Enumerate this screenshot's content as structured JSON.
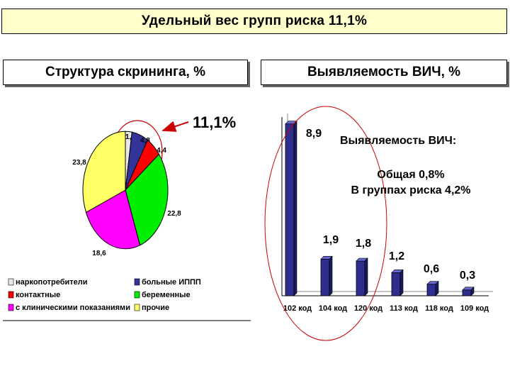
{
  "header": {
    "title": "Удельный вес групп риска  11,1%"
  },
  "panels": {
    "left_title": "Структура скрининга, %",
    "right_title": "Выявляемость ВИЧ, %"
  },
  "callout": {
    "text": "11,1%"
  },
  "info": {
    "heading": "Выявляемость ВИЧ:",
    "line1": "Общая 0,8%",
    "line2": "В группах риска 4,2%"
  },
  "chart_data": [
    {
      "type": "pie",
      "title": "Структура скрининга, %",
      "slices": [
        {
          "label": "наркопотребители",
          "value": 1.9,
          "value_label": "1,9",
          "color": "#e8e8e8"
        },
        {
          "label": "больные ИППП",
          "value": 4.8,
          "value_label": "4,8",
          "color": "#333399"
        },
        {
          "label": "контактные",
          "value": 4.4,
          "value_label": "4,4",
          "color": "#ff0000"
        },
        {
          "label": "беременные",
          "value": 22.8,
          "value_label": "22,8",
          "color": "#00ee00"
        },
        {
          "label": "с клиническими показаниями",
          "value": 18.6,
          "value_label": "18,6",
          "color": "#ff00ff"
        },
        {
          "label": "прочие",
          "value": 23.8,
          "value_label": "23,8",
          "color": "#ffff66"
        }
      ],
      "legend": {
        "position": "bottom",
        "columns": 2
      }
    },
    {
      "type": "bar",
      "title": "Выявляемость ВИЧ, %",
      "categories": [
        "102 код",
        "104 код",
        "120 код",
        "113 код",
        "118 код",
        "109 код"
      ],
      "values": [
        8.9,
        1.9,
        1.8,
        1.2,
        0.6,
        0.3
      ],
      "value_labels": [
        "8,9",
        "1,9",
        "1,8",
        "1,2",
        "0,6",
        "0,3"
      ],
      "bar_color": "#2e2e8f",
      "ylim": [
        0,
        9
      ],
      "grid": false
    }
  ]
}
